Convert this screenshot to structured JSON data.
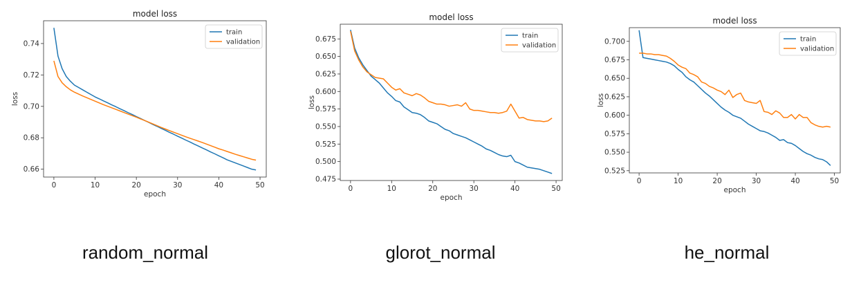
{
  "chart_data": [
    {
      "type": "line",
      "title": "model loss",
      "xlabel": "epoch",
      "ylabel": "loss",
      "caption": "random_normal",
      "xlim": [
        -2.5,
        51.5
      ],
      "ylim": [
        0.655,
        0.7545
      ],
      "xticks": [
        0,
        10,
        20,
        30,
        40,
        50
      ],
      "yticks": [
        0.66,
        0.68,
        0.7,
        0.72,
        0.74
      ],
      "grid": false,
      "legend": "upper right",
      "colors": {
        "train": "#1f77b4",
        "validation": "#ff7f0e"
      },
      "series": [
        {
          "name": "train",
          "x": [
            0,
            1,
            2,
            3,
            4,
            5,
            6,
            7,
            8,
            9,
            10,
            11,
            12,
            13,
            14,
            15,
            16,
            17,
            18,
            19,
            20,
            21,
            22,
            23,
            24,
            25,
            26,
            27,
            28,
            29,
            30,
            31,
            32,
            33,
            34,
            35,
            36,
            37,
            38,
            39,
            40,
            41,
            42,
            43,
            44,
            45,
            46,
            47,
            48,
            49
          ],
          "values": [
            0.75,
            0.732,
            0.724,
            0.719,
            0.716,
            0.7135,
            0.712,
            0.7105,
            0.709,
            0.7075,
            0.706,
            0.7048,
            0.7035,
            0.7023,
            0.701,
            0.6998,
            0.6985,
            0.6973,
            0.696,
            0.6948,
            0.6935,
            0.6923,
            0.691,
            0.6898,
            0.6885,
            0.6873,
            0.686,
            0.6848,
            0.6835,
            0.6823,
            0.681,
            0.6798,
            0.6785,
            0.6773,
            0.676,
            0.6748,
            0.6735,
            0.6723,
            0.671,
            0.6698,
            0.6685,
            0.6673,
            0.666,
            0.665,
            0.664,
            0.663,
            0.662,
            0.661,
            0.66,
            0.6595
          ]
        },
        {
          "name": "validation",
          "x": [
            0,
            1,
            2,
            3,
            4,
            5,
            6,
            7,
            8,
            9,
            10,
            11,
            12,
            13,
            14,
            15,
            16,
            17,
            18,
            19,
            20,
            21,
            22,
            23,
            24,
            25,
            26,
            27,
            28,
            29,
            30,
            31,
            32,
            33,
            34,
            35,
            36,
            37,
            38,
            39,
            40,
            41,
            42,
            43,
            44,
            45,
            46,
            47,
            48,
            49
          ],
          "values": [
            0.729,
            0.719,
            0.715,
            0.7125,
            0.7105,
            0.709,
            0.7078,
            0.7066,
            0.7055,
            0.7044,
            0.7033,
            0.7022,
            0.7011,
            0.7001,
            0.6991,
            0.6981,
            0.6971,
            0.6961,
            0.6951,
            0.6941,
            0.6931,
            0.692,
            0.691,
            0.6899,
            0.6888,
            0.6877,
            0.6866,
            0.6856,
            0.6846,
            0.6836,
            0.6826,
            0.6816,
            0.6806,
            0.6797,
            0.6788,
            0.6779,
            0.677,
            0.676,
            0.675,
            0.674,
            0.673,
            0.6722,
            0.6713,
            0.6704,
            0.6695,
            0.6687,
            0.6679,
            0.6671,
            0.6663,
            0.6658
          ]
        }
      ]
    },
    {
      "type": "line",
      "title": "model loss",
      "xlabel": "epoch",
      "ylabel": "loss",
      "caption": "glorot_normal",
      "xlim": [
        -2.5,
        51.5
      ],
      "ylim": [
        0.473,
        0.696
      ],
      "xticks": [
        0,
        10,
        20,
        30,
        40,
        50
      ],
      "yticks": [
        0.475,
        0.5,
        0.525,
        0.55,
        0.575,
        0.6,
        0.625,
        0.65,
        0.675
      ],
      "grid": false,
      "legend": "upper right",
      "colors": {
        "train": "#1f77b4",
        "validation": "#ff7f0e"
      },
      "series": [
        {
          "name": "train",
          "x": [
            0,
            1,
            2,
            3,
            4,
            5,
            6,
            7,
            8,
            9,
            10,
            11,
            12,
            13,
            14,
            15,
            16,
            17,
            18,
            19,
            20,
            21,
            22,
            23,
            24,
            25,
            26,
            27,
            28,
            29,
            30,
            31,
            32,
            33,
            34,
            35,
            36,
            37,
            38,
            39,
            40,
            41,
            42,
            43,
            44,
            45,
            46,
            47,
            48,
            49
          ],
          "values": [
            0.688,
            0.662,
            0.648,
            0.638,
            0.63,
            0.622,
            0.617,
            0.612,
            0.605,
            0.598,
            0.593,
            0.587,
            0.585,
            0.578,
            0.574,
            0.57,
            0.569,
            0.567,
            0.563,
            0.558,
            0.556,
            0.554,
            0.55,
            0.546,
            0.544,
            0.54,
            0.538,
            0.536,
            0.534,
            0.531,
            0.528,
            0.525,
            0.522,
            0.518,
            0.516,
            0.513,
            0.51,
            0.508,
            0.507,
            0.509,
            0.5,
            0.498,
            0.495,
            0.492,
            0.491,
            0.49,
            0.489,
            0.487,
            0.485,
            0.483
          ]
        },
        {
          "name": "validation",
          "x": [
            0,
            1,
            2,
            3,
            4,
            5,
            6,
            7,
            8,
            9,
            10,
            11,
            12,
            13,
            14,
            15,
            16,
            17,
            18,
            19,
            20,
            21,
            22,
            23,
            24,
            25,
            26,
            27,
            28,
            29,
            30,
            31,
            32,
            33,
            34,
            35,
            36,
            37,
            38,
            39,
            40,
            41,
            42,
            43,
            44,
            45,
            46,
            47,
            48,
            49
          ],
          "values": [
            0.686,
            0.658,
            0.645,
            0.635,
            0.628,
            0.624,
            0.62,
            0.619,
            0.618,
            0.612,
            0.606,
            0.602,
            0.604,
            0.598,
            0.596,
            0.594,
            0.597,
            0.595,
            0.591,
            0.586,
            0.584,
            0.582,
            0.582,
            0.581,
            0.579,
            0.58,
            0.581,
            0.579,
            0.584,
            0.575,
            0.573,
            0.573,
            0.572,
            0.571,
            0.57,
            0.57,
            0.569,
            0.57,
            0.572,
            0.582,
            0.572,
            0.562,
            0.563,
            0.56,
            0.559,
            0.558,
            0.558,
            0.557,
            0.558,
            0.562
          ]
        }
      ]
    },
    {
      "type": "line",
      "title": "model loss",
      "xlabel": "epoch",
      "ylabel": "loss",
      "caption": "he_normal",
      "xlim": [
        -2.5,
        51.5
      ],
      "ylim": [
        0.522,
        0.7185
      ],
      "xticks": [
        0,
        10,
        20,
        30,
        40,
        50
      ],
      "yticks": [
        0.525,
        0.55,
        0.575,
        0.6,
        0.625,
        0.65,
        0.675,
        0.7
      ],
      "grid": false,
      "legend": "upper right",
      "colors": {
        "train": "#1f77b4",
        "validation": "#ff7f0e"
      },
      "series": [
        {
          "name": "train",
          "x": [
            0,
            1,
            2,
            3,
            4,
            5,
            6,
            7,
            8,
            9,
            10,
            11,
            12,
            13,
            14,
            15,
            16,
            17,
            18,
            19,
            20,
            21,
            22,
            23,
            24,
            25,
            26,
            27,
            28,
            29,
            30,
            31,
            32,
            33,
            34,
            35,
            36,
            37,
            38,
            39,
            40,
            41,
            42,
            43,
            44,
            45,
            46,
            47,
            48,
            49
          ],
          "values": [
            0.715,
            0.678,
            0.677,
            0.676,
            0.675,
            0.674,
            0.673,
            0.672,
            0.67,
            0.667,
            0.662,
            0.658,
            0.652,
            0.648,
            0.645,
            0.64,
            0.635,
            0.63,
            0.626,
            0.621,
            0.616,
            0.611,
            0.607,
            0.604,
            0.6,
            0.598,
            0.596,
            0.592,
            0.588,
            0.585,
            0.582,
            0.579,
            0.578,
            0.576,
            0.573,
            0.57,
            0.566,
            0.567,
            0.563,
            0.562,
            0.559,
            0.555,
            0.551,
            0.548,
            0.546,
            0.543,
            0.541,
            0.54,
            0.537,
            0.532
          ]
        },
        {
          "name": "validation",
          "x": [
            0,
            1,
            2,
            3,
            4,
            5,
            6,
            7,
            8,
            9,
            10,
            11,
            12,
            13,
            14,
            15,
            16,
            17,
            18,
            19,
            20,
            21,
            22,
            23,
            24,
            25,
            26,
            27,
            28,
            29,
            30,
            31,
            32,
            33,
            34,
            35,
            36,
            37,
            38,
            39,
            40,
            41,
            42,
            43,
            44,
            45,
            46,
            47,
            48,
            49
          ],
          "values": [
            0.684,
            0.684,
            0.683,
            0.683,
            0.682,
            0.682,
            0.681,
            0.68,
            0.677,
            0.673,
            0.668,
            0.665,
            0.663,
            0.657,
            0.655,
            0.652,
            0.645,
            0.643,
            0.639,
            0.637,
            0.634,
            0.632,
            0.628,
            0.634,
            0.624,
            0.628,
            0.63,
            0.62,
            0.618,
            0.617,
            0.616,
            0.62,
            0.605,
            0.604,
            0.601,
            0.606,
            0.603,
            0.597,
            0.597,
            0.601,
            0.595,
            0.601,
            0.597,
            0.597,
            0.59,
            0.587,
            0.585,
            0.584,
            0.585,
            0.584
          ]
        }
      ]
    }
  ]
}
